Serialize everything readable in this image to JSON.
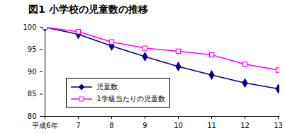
{
  "chart_data": {
    "type": "line",
    "title": "図1 小学校の児童数の推移",
    "categories": [
      "平成6年",
      "7",
      "8",
      "9",
      "10",
      "11",
      "12",
      "13"
    ],
    "series": [
      {
        "name": "児童数",
        "color": "#000080",
        "marker": "diamond",
        "values": [
          100,
          98.4,
          95.8,
          93.4,
          91.2,
          89.3,
          87.5,
          86.2
        ]
      },
      {
        "name": "1学級当たりの児童数",
        "color": "#ff00ff",
        "marker": "open-square",
        "values": [
          100,
          99.0,
          96.7,
          95.3,
          94.6,
          93.8,
          91.7,
          90.4
        ]
      }
    ],
    "ylim": [
      80,
      100
    ],
    "yticks": [
      80,
      85,
      90,
      95,
      100
    ],
    "grid": false,
    "legend": "lower left"
  }
}
